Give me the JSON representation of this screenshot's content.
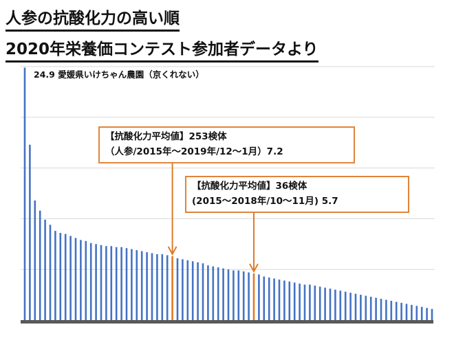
{
  "title_lines": [
    "人参の抗酸化力の高い順",
    "2020年栄養価コンテスト参加者データより"
  ],
  "top_label": "24.9 愛媛県いけちゃん農園（京くれない）",
  "annotations": [
    {
      "line1": "【抗酸化力平均値】253検体",
      "line2": "（人参/2015年～2019年/12～1月）7.2"
    },
    {
      "line1": "【抗酸化力平均値】36検体",
      "line2": "(2015～2018年/10～11月) 5.7"
    }
  ],
  "colors": {
    "bar": "#4472c4",
    "highlight": "#e07b28",
    "axis": "#595959",
    "grid": "#d9d9d9",
    "box_border": "#e0843a"
  },
  "chart_data": {
    "type": "bar",
    "ylim": [
      0,
      25
    ],
    "grid": true,
    "highlight_indices": [
      29,
      45
    ],
    "values": [
      24.9,
      17.3,
      11.8,
      10.8,
      9.9,
      9.4,
      8.8,
      8.6,
      8.5,
      8.3,
      8.1,
      7.9,
      7.8,
      7.6,
      7.5,
      7.4,
      7.3,
      7.3,
      7.2,
      7.2,
      7.1,
      7.0,
      6.9,
      6.8,
      6.7,
      6.6,
      6.5,
      6.5,
      6.4,
      6.3,
      6.1,
      6.0,
      5.9,
      5.8,
      5.7,
      5.6,
      5.4,
      5.3,
      5.2,
      5.1,
      5.0,
      4.9,
      4.9,
      4.8,
      4.7,
      4.6,
      4.5,
      4.3,
      4.2,
      4.1,
      4.0,
      3.9,
      3.8,
      3.7,
      3.6,
      3.5,
      3.5,
      3.4,
      3.3,
      3.2,
      3.1,
      3.0,
      2.9,
      2.8,
      2.7,
      2.6,
      2.5,
      2.4,
      2.3,
      2.2,
      2.1,
      2.0,
      1.9,
      1.8,
      1.7,
      1.6,
      1.5,
      1.4,
      1.3,
      1.2,
      1.1
    ]
  }
}
